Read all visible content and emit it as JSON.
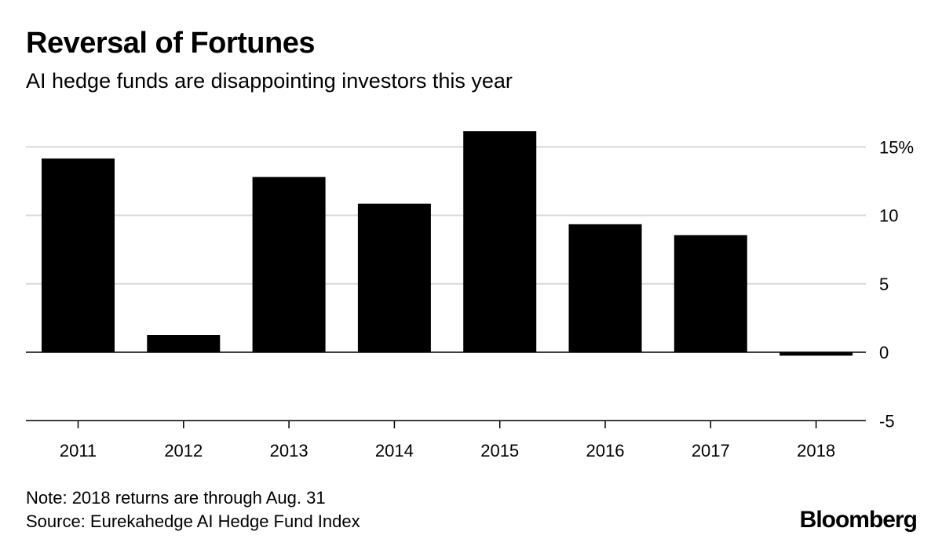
{
  "chart_data": {
    "type": "bar",
    "title": "Reversal of Fortunes",
    "subtitle": "AI hedge funds are disappointing investors this year",
    "categories": [
      "2011",
      "2012",
      "2013",
      "2014",
      "2015",
      "2016",
      "2017",
      "2018"
    ],
    "values": [
      14.15,
      1.26,
      12.8,
      10.85,
      16.15,
      9.35,
      8.55,
      -0.25
    ],
    "xlabel": "",
    "ylabel": "",
    "ylim": [
      -5,
      17
    ],
    "yticks": [
      -5,
      0,
      5,
      10,
      15
    ],
    "ytick_labels": [
      "-5",
      "0",
      "5",
      "10",
      "15%"
    ],
    "grid": true,
    "bar_color": "#000000",
    "grid_color": "#d9d9d9"
  },
  "footer": {
    "note": "Note: 2018 returns are through Aug. 31",
    "source": "Source: Eurekahedge AI Hedge Fund Index",
    "logo": "Bloomberg"
  }
}
